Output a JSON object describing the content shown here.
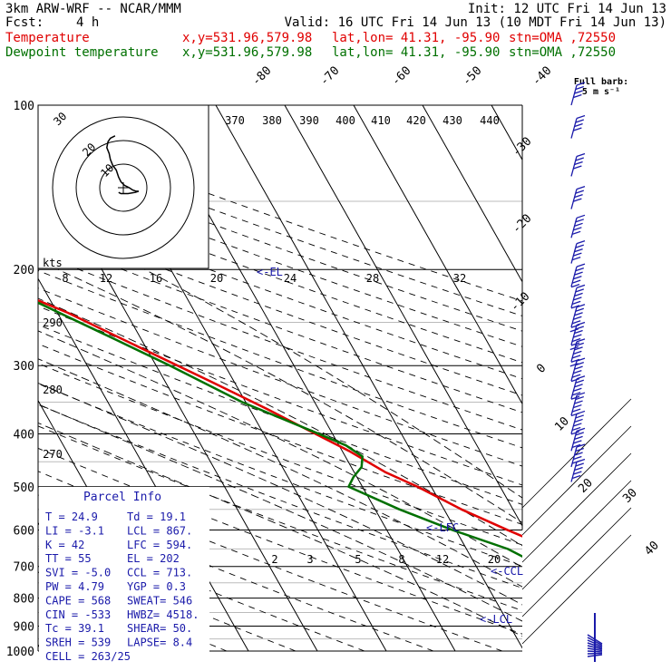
{
  "header": {
    "model": "3km ARW-WRF -- NCAR/MMM",
    "init": "Init: 12 UTC Fri 14 Jun 13",
    "fcst_label": "Fcst:",
    "fcst_value": "4 h",
    "valid": "Valid: 16 UTC Fri 14 Jun 13 (10 MDT Fri 14 Jun 13)",
    "temp_line": {
      "name": "Temperature",
      "xy": "x,y=531.96,579.98",
      "latlon": "lat,lon= 41.31, -95.90",
      "stn": "stn=OMA ,72550"
    },
    "dew_line": {
      "name": "Dewpoint temperature",
      "xy": "x,y=531.96,579.98",
      "latlon": "lat,lon= 41.31, -95.90",
      "stn": "stn=OMA ,72550"
    }
  },
  "colors": {
    "temperature": "#e00000",
    "dewpoint": "#007000",
    "wind": "#1a1aaa",
    "labels": "#1a1aaa"
  },
  "barb_legend": {
    "title": "Full barb:",
    "value": "5 m s⁻¹"
  },
  "hodograph": {
    "kts_label": "kts",
    "ring_labels": [
      "30",
      "20",
      "10"
    ]
  },
  "parcel_info": {
    "title": "Parcel Info",
    "rows": [
      [
        "T    =   24.9",
        "Td   =  19.1"
      ],
      [
        "LI   =   -3.1",
        "LCL  =  867."
      ],
      [
        "K    =     42",
        "LFC  =  594."
      ],
      [
        "TT   =     55",
        "EL   =   202"
      ],
      [
        "SVI  =   -5.0",
        "CCL  =  713."
      ],
      [
        "PW   =   4.79",
        "YGP  =   0.3"
      ],
      [
        "CAPE =    568",
        "SWEAT=   546"
      ],
      [
        "CIN  =   -533",
        "HWBZ= 4518."
      ],
      [
        "Tc   =   39.1",
        "SHEAR=   50."
      ],
      [
        "SREH =    539",
        "LAPSE=   8.4"
      ],
      [
        "CELL = 263/25",
        ""
      ]
    ]
  },
  "level_markers": {
    "el": "<-EL",
    "lfc": "<-LFC",
    "ccl": "<-CCL",
    "lcl": "<-LCL"
  },
  "chart_data": {
    "type": "line",
    "title": "",
    "pressure_levels": [
      1000,
      900,
      800,
      700,
      600,
      500,
      400,
      300,
      200,
      100
    ],
    "pressure_labels": [
      "1000",
      "900",
      "800",
      "700",
      "600",
      "500",
      "400",
      "300",
      "200",
      "100"
    ],
    "temperature_tick_labels": [
      "-80",
      "-70",
      "-60",
      "-50",
      "-40",
      "-30",
      "-20",
      "-10",
      "0",
      "10",
      "20",
      "30",
      "40"
    ],
    "theta_labels": [
      "370",
      "380",
      "390",
      "400",
      "410",
      "420",
      "430",
      "440"
    ],
    "theta_lower_labels": [
      "290",
      "280",
      "270"
    ],
    "mixing_ratio_upper_labels": [
      "8",
      "12",
      "16",
      "20",
      "24",
      "28",
      "32"
    ],
    "mixing_ratio_lower_labels": [
      "2",
      "3",
      "5",
      "8",
      "12",
      "20"
    ],
    "series": [
      {
        "name": "Temperature",
        "points": [
          [
            962,
            25.0
          ],
          [
            930,
            22.5
          ],
          [
            900,
            21.0
          ],
          [
            875,
            22.5
          ],
          [
            840,
            24.5
          ],
          [
            820,
            25.0
          ],
          [
            790,
            24.0
          ],
          [
            740,
            20.0
          ],
          [
            700,
            16.5
          ],
          [
            650,
            12.5
          ],
          [
            600,
            7.5
          ],
          [
            550,
            2.5
          ],
          [
            500,
            -2.0
          ],
          [
            470,
            -5.5
          ],
          [
            430,
            -9.0
          ],
          [
            400,
            -12.5
          ],
          [
            360,
            -17.5
          ],
          [
            320,
            -23.5
          ],
          [
            280,
            -30.5
          ],
          [
            240,
            -38.5
          ],
          [
            210,
            -47.0
          ],
          [
            198,
            -50.5
          ],
          [
            185,
            -52.5
          ],
          [
            170,
            -53.5
          ],
          [
            150,
            -55.5
          ],
          [
            130,
            -58.0
          ],
          [
            115,
            -61.5
          ],
          [
            100,
            -65.0
          ]
        ]
      },
      {
        "name": "Dewpoint temperature",
        "points": [
          [
            962,
            19.0
          ],
          [
            950,
            18.5
          ],
          [
            935,
            17.5
          ],
          [
            922,
            14.5
          ],
          [
            915,
            17.0
          ],
          [
            900,
            17.0
          ],
          [
            880,
            15.5
          ],
          [
            820,
            12.0
          ],
          [
            760,
            11.0
          ],
          [
            700,
            9.5
          ],
          [
            650,
            6.0
          ],
          [
            600,
            -0.5
          ],
          [
            550,
            -6.5
          ],
          [
            500,
            -12.0
          ],
          [
            480,
            -10.5
          ],
          [
            460,
            -8.5
          ],
          [
            440,
            -7.5
          ],
          [
            420,
            -9.0
          ],
          [
            400,
            -12.0
          ],
          [
            350,
            -20.5
          ],
          [
            300,
            -28.0
          ],
          [
            260,
            -35.5
          ],
          [
            230,
            -42.0
          ],
          [
            200,
            -51.0
          ],
          [
            180,
            -56.0
          ],
          [
            160,
            -59.5
          ],
          [
            150,
            -63.0
          ],
          [
            140,
            -66.5
          ],
          [
            130,
            -68.0
          ],
          [
            115,
            -71.0
          ],
          [
            100,
            -75.0
          ]
        ]
      }
    ],
    "hodograph_trace": [
      [
        -3.5,
        22.0
      ],
      [
        -5.5,
        21.0
      ],
      [
        -6.5,
        19.5
      ],
      [
        -7.0,
        17.0
      ],
      [
        -6.0,
        14.5
      ],
      [
        -5.5,
        12.0
      ],
      [
        -4.5,
        9.5
      ],
      [
        -3.0,
        7.5
      ],
      [
        -2.0,
        4.5
      ],
      [
        -1.0,
        2.5
      ],
      [
        0.5,
        1.0
      ],
      [
        2.5,
        0.0
      ],
      [
        4.0,
        -1.0
      ],
      [
        5.5,
        -1.5
      ],
      [
        6.5,
        -1.5
      ],
      [
        5.0,
        -2.0
      ],
      [
        2.0,
        -2.5
      ],
      [
        -1.0,
        -2.5
      ],
      [
        -2.0,
        -2.0
      ]
    ],
    "wind_profile": [
      [
        100,
        4,
        40
      ],
      [
        115,
        4,
        38
      ],
      [
        135,
        4,
        36
      ],
      [
        155,
        4,
        34
      ],
      [
        175,
        5,
        32
      ],
      [
        195,
        5,
        32
      ],
      [
        215,
        6,
        34
      ],
      [
        235,
        6,
        36
      ],
      [
        255,
        7,
        38
      ],
      [
        275,
        7,
        36
      ],
      [
        295,
        7,
        34
      ],
      [
        320,
        6,
        32
      ],
      [
        345,
        6,
        30
      ],
      [
        370,
        6,
        28
      ],
      [
        400,
        6,
        26
      ],
      [
        430,
        5,
        24
      ],
      [
        460,
        5,
        22
      ],
      [
        490,
        5,
        20
      ]
    ],
    "xlabel": "",
    "ylabel": "",
    "grid": true
  }
}
